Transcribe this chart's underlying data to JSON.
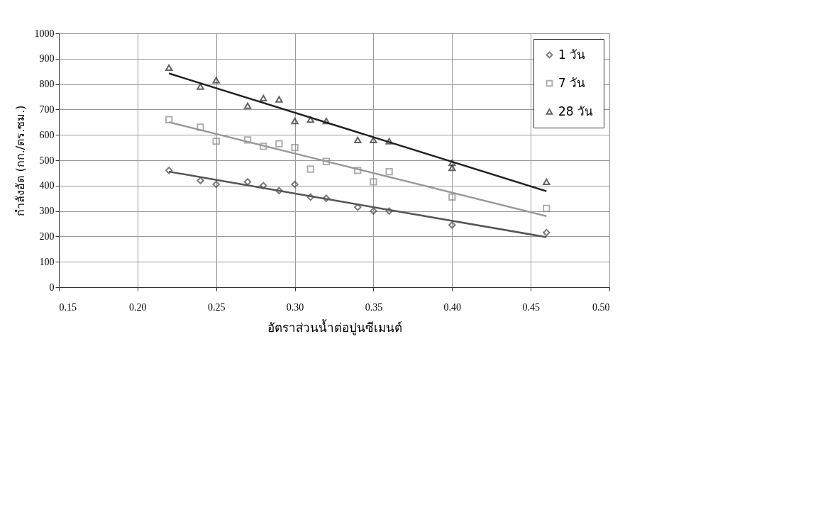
{
  "chart_data": {
    "type": "scatter",
    "xlabel": "อัตราส่วนน้ำต่อปูนซีเมนต์",
    "ylabel": "กำลังอัด (กก./ตร.ซม.)",
    "xlim": [
      0.15,
      0.5
    ],
    "xticks": [
      {
        "value": 0.15,
        "label": "0.15"
      },
      {
        "value": 0.2,
        "label": "0.20"
      },
      {
        "value": 0.25,
        "label": "0.25"
      },
      {
        "value": 0.3,
        "label": "0.30"
      },
      {
        "value": 0.35,
        "label": "0.35"
      },
      {
        "value": 0.4,
        "label": "0.40"
      },
      {
        "value": 0.45,
        "label": "0.45"
      },
      {
        "value": 0.5,
        "label": "0.50"
      }
    ],
    "ylim": [
      0,
      1000
    ],
    "yticks": [
      0,
      100,
      200,
      300,
      400,
      500,
      600,
      700,
      800,
      900,
      1000
    ],
    "grid": true,
    "legend": "top right",
    "series": [
      {
        "name": "1 วัน",
        "marker": "diamond",
        "color": "#444444",
        "x": [
          0.22,
          0.24,
          0.25,
          0.27,
          0.28,
          0.29,
          0.3,
          0.31,
          0.32,
          0.34,
          0.35,
          0.36,
          0.4,
          0.46
        ],
        "values": [
          460,
          420,
          405,
          415,
          400,
          380,
          405,
          355,
          350,
          315,
          300,
          300,
          245,
          215
        ]
      },
      {
        "name": "7 วัน",
        "marker": "square",
        "color": "#8c8c8c",
        "x": [
          0.22,
          0.24,
          0.25,
          0.27,
          0.28,
          0.29,
          0.3,
          0.31,
          0.32,
          0.34,
          0.35,
          0.36,
          0.4,
          0.46
        ],
        "values": [
          660,
          630,
          575,
          580,
          555,
          565,
          550,
          465,
          495,
          460,
          415,
          455,
          355,
          310
        ]
      },
      {
        "name": "28 วัน",
        "marker": "triangle",
        "color": "#222222",
        "x": [
          0.22,
          0.24,
          0.25,
          0.27,
          0.28,
          0.29,
          0.3,
          0.31,
          0.32,
          0.34,
          0.35,
          0.36,
          0.4,
          0.4,
          0.46
        ],
        "values": [
          865,
          790,
          815,
          715,
          745,
          740,
          655,
          660,
          655,
          580,
          580,
          575,
          490,
          470,
          415
        ]
      },
      {
        "type": "line",
        "color": "#555555",
        "x": [
          0.22,
          0.46
        ],
        "values": [
          455,
          197
        ]
      },
      {
        "type": "line",
        "color": "#999999",
        "x": [
          0.22,
          0.46
        ],
        "values": [
          650,
          280
        ]
      },
      {
        "type": "line",
        "color": "#222222",
        "x": [
          0.22,
          0.46
        ],
        "values": [
          842,
          378
        ]
      }
    ]
  }
}
